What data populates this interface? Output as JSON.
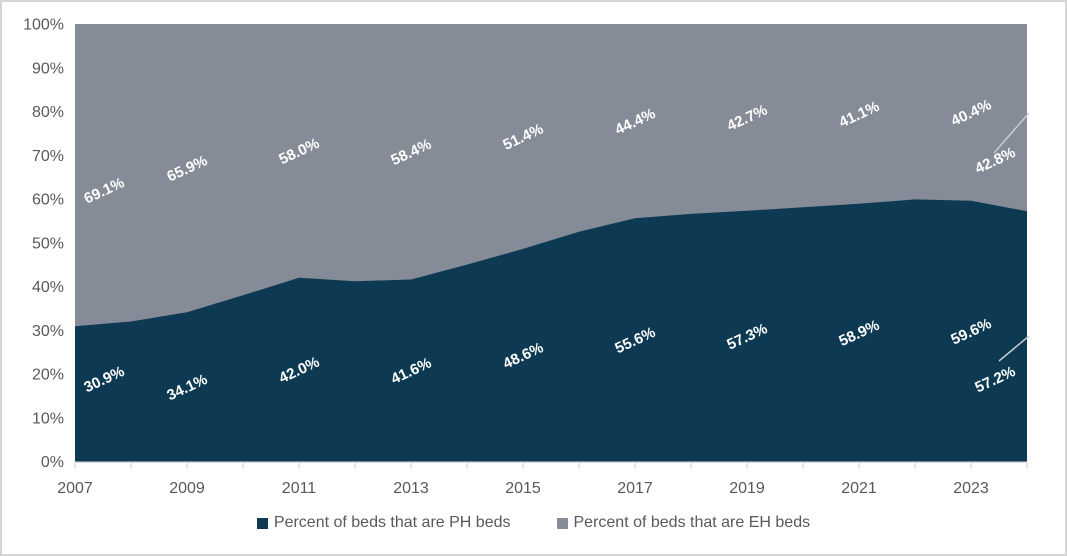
{
  "chart_data": {
    "type": "area",
    "variant": "100%-stacked",
    "title": "",
    "xlabel": "",
    "ylabel": "",
    "ylim": [
      0,
      100
    ],
    "grid": false,
    "x": [
      2007,
      2008,
      2009,
      2010,
      2011,
      2012,
      2013,
      2014,
      2015,
      2016,
      2017,
      2018,
      2019,
      2020,
      2021,
      2022,
      2023,
      2024
    ],
    "series": [
      {
        "name": "Percent of beds that are PH beds",
        "color": "#0d3a52",
        "values": [
          30.9,
          32.0,
          34.1,
          38.0,
          42.0,
          41.2,
          41.6,
          45.0,
          48.6,
          52.5,
          55.6,
          56.6,
          57.3,
          58.1,
          58.9,
          59.9,
          59.6,
          57.2
        ]
      },
      {
        "name": "Percent of beds that are EH beds",
        "color": "#858b97",
        "values": [
          69.1,
          68.0,
          65.9,
          62.0,
          58.0,
          58.8,
          58.4,
          55.0,
          51.4,
          47.5,
          44.4,
          43.4,
          42.7,
          41.9,
          41.1,
          40.1,
          40.4,
          42.8
        ]
      }
    ],
    "point_labels": {
      "years": [
        2007,
        2009,
        2011,
        2013,
        2015,
        2017,
        2019,
        2021,
        2023,
        2024
      ],
      "ph": [
        "30.9%",
        "34.1%",
        "42.0%",
        "41.6%",
        "48.6%",
        "55.6%",
        "57.3%",
        "58.9%",
        "59.6%",
        "57.2%"
      ],
      "eh": [
        "69.1%",
        "65.9%",
        "58.0%",
        "58.4%",
        "51.4%",
        "44.4%",
        "42.7%",
        "41.1%",
        "40.4%",
        "42.8%"
      ]
    },
    "y_ticks": [
      "0%",
      "10%",
      "20%",
      "30%",
      "40%",
      "50%",
      "60%",
      "70%",
      "80%",
      "90%",
      "100%"
    ],
    "x_tick_labels": [
      "2007",
      "2009",
      "2011",
      "2013",
      "2015",
      "2017",
      "2019",
      "2021",
      "2023"
    ],
    "legend_position": "bottom",
    "colors": {
      "data_label_text": "#ffffff",
      "axis_text": "#595959",
      "axis_line": "#d9d9e3",
      "tick_mark": "#c9c9d6",
      "leader_line": "#c7cdd3",
      "frame_border": "#d6d6d6"
    }
  }
}
